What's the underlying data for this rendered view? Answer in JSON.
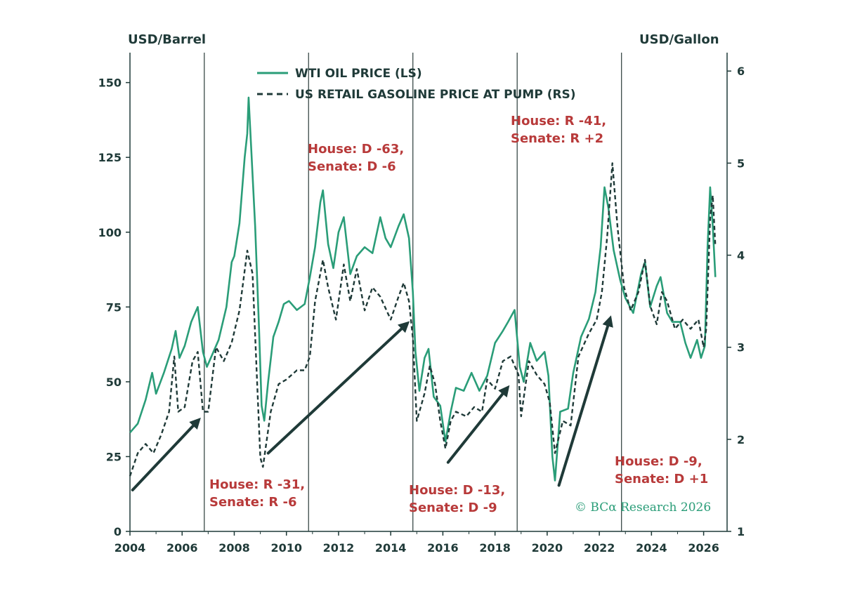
{
  "chart_data": {
    "type": "line",
    "left_axis_label": "USD/Barrel",
    "right_axis_label": "USD/Gallon",
    "xlim": [
      2004.0,
      2026.9
    ],
    "ylim_left": [
      0,
      160
    ],
    "ylim_right": [
      1,
      6.2
    ],
    "x_ticks": [
      "2004",
      "2006",
      "2008",
      "2010",
      "2012",
      "2014",
      "2016",
      "2018",
      "2020",
      "2022",
      "2024",
      "2026"
    ],
    "left_ticks": [
      "0",
      "25",
      "50",
      "75",
      "100",
      "125",
      "150"
    ],
    "right_ticks": [
      "1",
      "2",
      "3",
      "4",
      "5",
      "6"
    ],
    "election_lines": [
      2006.85,
      2010.85,
      2014.85,
      2018.85,
      2022.85
    ],
    "series": [
      {
        "name": "WTI OIL PRICE (LS)",
        "color": "#2a9d78",
        "style": "solid",
        "axis": "left",
        "points": [
          [
            2004.0,
            33
          ],
          [
            2004.3,
            36
          ],
          [
            2004.6,
            44
          ],
          [
            2004.85,
            53
          ],
          [
            2005.0,
            46
          ],
          [
            2005.3,
            53
          ],
          [
            2005.6,
            61
          ],
          [
            2005.75,
            67
          ],
          [
            2005.9,
            58
          ],
          [
            2006.1,
            62
          ],
          [
            2006.35,
            70
          ],
          [
            2006.6,
            75
          ],
          [
            2006.8,
            60
          ],
          [
            2006.95,
            55
          ],
          [
            2007.1,
            58
          ],
          [
            2007.4,
            64
          ],
          [
            2007.7,
            75
          ],
          [
            2007.9,
            90
          ],
          [
            2008.0,
            92
          ],
          [
            2008.2,
            103
          ],
          [
            2008.4,
            125
          ],
          [
            2008.5,
            133
          ],
          [
            2008.55,
            145
          ],
          [
            2008.65,
            128
          ],
          [
            2008.8,
            102
          ],
          [
            2008.95,
            68
          ],
          [
            2009.05,
            42
          ],
          [
            2009.15,
            37
          ],
          [
            2009.3,
            50
          ],
          [
            2009.5,
            65
          ],
          [
            2009.7,
            70
          ],
          [
            2009.9,
            76
          ],
          [
            2010.1,
            77
          ],
          [
            2010.4,
            74
          ],
          [
            2010.7,
            76
          ],
          [
            2010.9,
            85
          ],
          [
            2011.1,
            95
          ],
          [
            2011.3,
            110
          ],
          [
            2011.4,
            114
          ],
          [
            2011.6,
            96
          ],
          [
            2011.8,
            88
          ],
          [
            2012.0,
            100
          ],
          [
            2012.2,
            105
          ],
          [
            2012.45,
            86
          ],
          [
            2012.7,
            92
          ],
          [
            2013.0,
            95
          ],
          [
            2013.3,
            93
          ],
          [
            2013.6,
            105
          ],
          [
            2013.8,
            98
          ],
          [
            2014.0,
            95
          ],
          [
            2014.3,
            102
          ],
          [
            2014.5,
            106
          ],
          [
            2014.7,
            98
          ],
          [
            2014.85,
            80
          ],
          [
            2014.95,
            60
          ],
          [
            2015.1,
            47
          ],
          [
            2015.3,
            58
          ],
          [
            2015.45,
            61
          ],
          [
            2015.65,
            45
          ],
          [
            2015.9,
            42
          ],
          [
            2016.1,
            30
          ],
          [
            2016.3,
            40
          ],
          [
            2016.5,
            48
          ],
          [
            2016.8,
            47
          ],
          [
            2017.1,
            53
          ],
          [
            2017.4,
            47
          ],
          [
            2017.7,
            52
          ],
          [
            2018.0,
            63
          ],
          [
            2018.3,
            67
          ],
          [
            2018.5,
            70
          ],
          [
            2018.75,
            74
          ],
          [
            2018.95,
            55
          ],
          [
            2019.1,
            50
          ],
          [
            2019.35,
            63
          ],
          [
            2019.6,
            57
          ],
          [
            2019.9,
            60
          ],
          [
            2020.05,
            52
          ],
          [
            2020.2,
            25
          ],
          [
            2020.3,
            17
          ],
          [
            2020.5,
            40
          ],
          [
            2020.8,
            41
          ],
          [
            2021.0,
            53
          ],
          [
            2021.3,
            65
          ],
          [
            2021.6,
            71
          ],
          [
            2021.85,
            80
          ],
          [
            2022.05,
            95
          ],
          [
            2022.2,
            115
          ],
          [
            2022.35,
            108
          ],
          [
            2022.55,
            94
          ],
          [
            2022.8,
            84
          ],
          [
            2023.0,
            78
          ],
          [
            2023.3,
            73
          ],
          [
            2023.6,
            86
          ],
          [
            2023.75,
            90
          ],
          [
            2023.95,
            75
          ],
          [
            2024.2,
            82
          ],
          [
            2024.35,
            85
          ],
          [
            2024.6,
            73
          ],
          [
            2024.8,
            70
          ],
          [
            2025.1,
            70
          ],
          [
            2025.3,
            63
          ],
          [
            2025.5,
            58
          ],
          [
            2025.75,
            64
          ],
          [
            2025.9,
            58
          ],
          [
            2026.05,
            62
          ],
          [
            2026.15,
            95
          ],
          [
            2026.25,
            115
          ],
          [
            2026.35,
            102
          ],
          [
            2026.45,
            85
          ]
        ]
      },
      {
        "name": "US RETAIL GASOLINE PRICE AT PUMP (RS)",
        "color": "#1f3a38",
        "style": "dashed",
        "axis": "right",
        "points": [
          [
            2004.0,
            1.6
          ],
          [
            2004.3,
            1.85
          ],
          [
            2004.6,
            1.95
          ],
          [
            2004.9,
            1.85
          ],
          [
            2005.2,
            2.05
          ],
          [
            2005.5,
            2.3
          ],
          [
            2005.7,
            2.9
          ],
          [
            2005.85,
            2.3
          ],
          [
            2006.1,
            2.35
          ],
          [
            2006.4,
            2.85
          ],
          [
            2006.6,
            2.95
          ],
          [
            2006.8,
            2.3
          ],
          [
            2007.0,
            2.3
          ],
          [
            2007.3,
            3.0
          ],
          [
            2007.6,
            2.85
          ],
          [
            2007.9,
            3.05
          ],
          [
            2008.2,
            3.4
          ],
          [
            2008.5,
            4.05
          ],
          [
            2008.7,
            3.8
          ],
          [
            2008.85,
            2.8
          ],
          [
            2009.0,
            1.8
          ],
          [
            2009.1,
            1.7
          ],
          [
            2009.4,
            2.3
          ],
          [
            2009.7,
            2.6
          ],
          [
            2010.0,
            2.65
          ],
          [
            2010.4,
            2.75
          ],
          [
            2010.7,
            2.75
          ],
          [
            2010.9,
            2.9
          ],
          [
            2011.1,
            3.5
          ],
          [
            2011.4,
            3.95
          ],
          [
            2011.6,
            3.65
          ],
          [
            2011.9,
            3.3
          ],
          [
            2012.2,
            3.9
          ],
          [
            2012.45,
            3.5
          ],
          [
            2012.7,
            3.85
          ],
          [
            2013.0,
            3.4
          ],
          [
            2013.3,
            3.65
          ],
          [
            2013.6,
            3.55
          ],
          [
            2014.0,
            3.3
          ],
          [
            2014.3,
            3.55
          ],
          [
            2014.5,
            3.7
          ],
          [
            2014.7,
            3.5
          ],
          [
            2014.85,
            3.1
          ],
          [
            2015.0,
            2.2
          ],
          [
            2015.3,
            2.5
          ],
          [
            2015.5,
            2.8
          ],
          [
            2015.7,
            2.6
          ],
          [
            2015.9,
            2.2
          ],
          [
            2016.1,
            1.9
          ],
          [
            2016.3,
            2.2
          ],
          [
            2016.5,
            2.3
          ],
          [
            2016.9,
            2.25
          ],
          [
            2017.2,
            2.35
          ],
          [
            2017.5,
            2.3
          ],
          [
            2017.7,
            2.65
          ],
          [
            2018.0,
            2.55
          ],
          [
            2018.3,
            2.85
          ],
          [
            2018.6,
            2.9
          ],
          [
            2018.9,
            2.7
          ],
          [
            2019.0,
            2.25
          ],
          [
            2019.3,
            2.85
          ],
          [
            2019.6,
            2.7
          ],
          [
            2019.9,
            2.6
          ],
          [
            2020.1,
            2.4
          ],
          [
            2020.3,
            1.85
          ],
          [
            2020.6,
            2.2
          ],
          [
            2020.9,
            2.15
          ],
          [
            2021.2,
            2.9
          ],
          [
            2021.6,
            3.15
          ],
          [
            2021.9,
            3.3
          ],
          [
            2022.1,
            3.6
          ],
          [
            2022.3,
            4.2
          ],
          [
            2022.5,
            5.0
          ],
          [
            2022.7,
            4.3
          ],
          [
            2022.95,
            3.65
          ],
          [
            2023.2,
            3.4
          ],
          [
            2023.5,
            3.6
          ],
          [
            2023.75,
            3.95
          ],
          [
            2023.95,
            3.45
          ],
          [
            2024.2,
            3.25
          ],
          [
            2024.4,
            3.6
          ],
          [
            2024.6,
            3.5
          ],
          [
            2024.9,
            3.2
          ],
          [
            2025.2,
            3.3
          ],
          [
            2025.5,
            3.2
          ],
          [
            2025.8,
            3.3
          ],
          [
            2026.0,
            3.0
          ],
          [
            2026.1,
            3.2
          ],
          [
            2026.25,
            4.4
          ],
          [
            2026.35,
            4.65
          ],
          [
            2026.45,
            4.1
          ]
        ]
      }
    ],
    "arrows": [
      [
        [
          2004.1,
          1.45
        ],
        [
          2006.6,
          2.2
        ]
      ],
      [
        [
          2009.3,
          1.85
        ],
        [
          2014.6,
          3.25
        ]
      ],
      [
        [
          2016.2,
          1.75
        ],
        [
          2018.45,
          2.55
        ]
      ],
      [
        [
          2020.45,
          1.5
        ],
        [
          2022.4,
          3.3
        ]
      ]
    ]
  },
  "annotations": [
    {
      "line1": "House: R -31,",
      "line2": "Senate: R -6"
    },
    {
      "line1": "House: D -63,",
      "line2": "Senate: D -6"
    },
    {
      "line1": "House: D -13,",
      "line2": "Senate: D -9"
    },
    {
      "line1": "House: R -41,",
      "line2": "Senate: R +2"
    },
    {
      "line1": "House: D -9,",
      "line2": "Senate: D +1"
    }
  ],
  "credit": "© BCα Research 2026"
}
